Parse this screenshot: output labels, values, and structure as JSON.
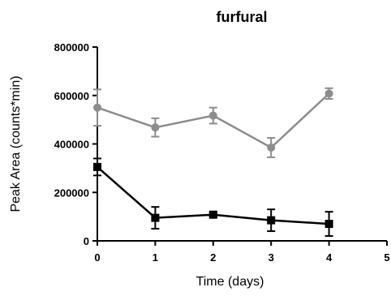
{
  "chart_data": {
    "type": "line",
    "title": "furfural",
    "xlabel": "Time (days)",
    "ylabel": "Peak Area (counts*min)",
    "xlim": [
      0,
      5
    ],
    "ylim": [
      0,
      800000
    ],
    "x_ticks": [
      0,
      1,
      2,
      3,
      4,
      5
    ],
    "x_tick_labels": [
      "0",
      "1",
      "2",
      "3",
      "4",
      "5"
    ],
    "y_ticks": [
      0,
      200000,
      400000,
      600000,
      800000
    ],
    "y_tick_labels": [
      "0",
      "200000",
      "400000",
      "600000",
      "800000"
    ],
    "grid": false,
    "legend": "none",
    "series": [
      {
        "color": "#8c8c8c",
        "marker": "circle",
        "x": [
          0,
          1,
          2,
          3,
          4
        ],
        "y": [
          550000,
          468000,
          517000,
          385000,
          608000
        ],
        "error": [
          75000,
          38000,
          33000,
          40000,
          22000
        ]
      },
      {
        "color": "#000000",
        "marker": "square",
        "x": [
          0,
          1,
          2,
          3,
          4
        ],
        "y": [
          305000,
          95000,
          108000,
          85000,
          70000
        ],
        "error": [
          35000,
          45000,
          8000,
          45000,
          50000
        ]
      }
    ]
  }
}
